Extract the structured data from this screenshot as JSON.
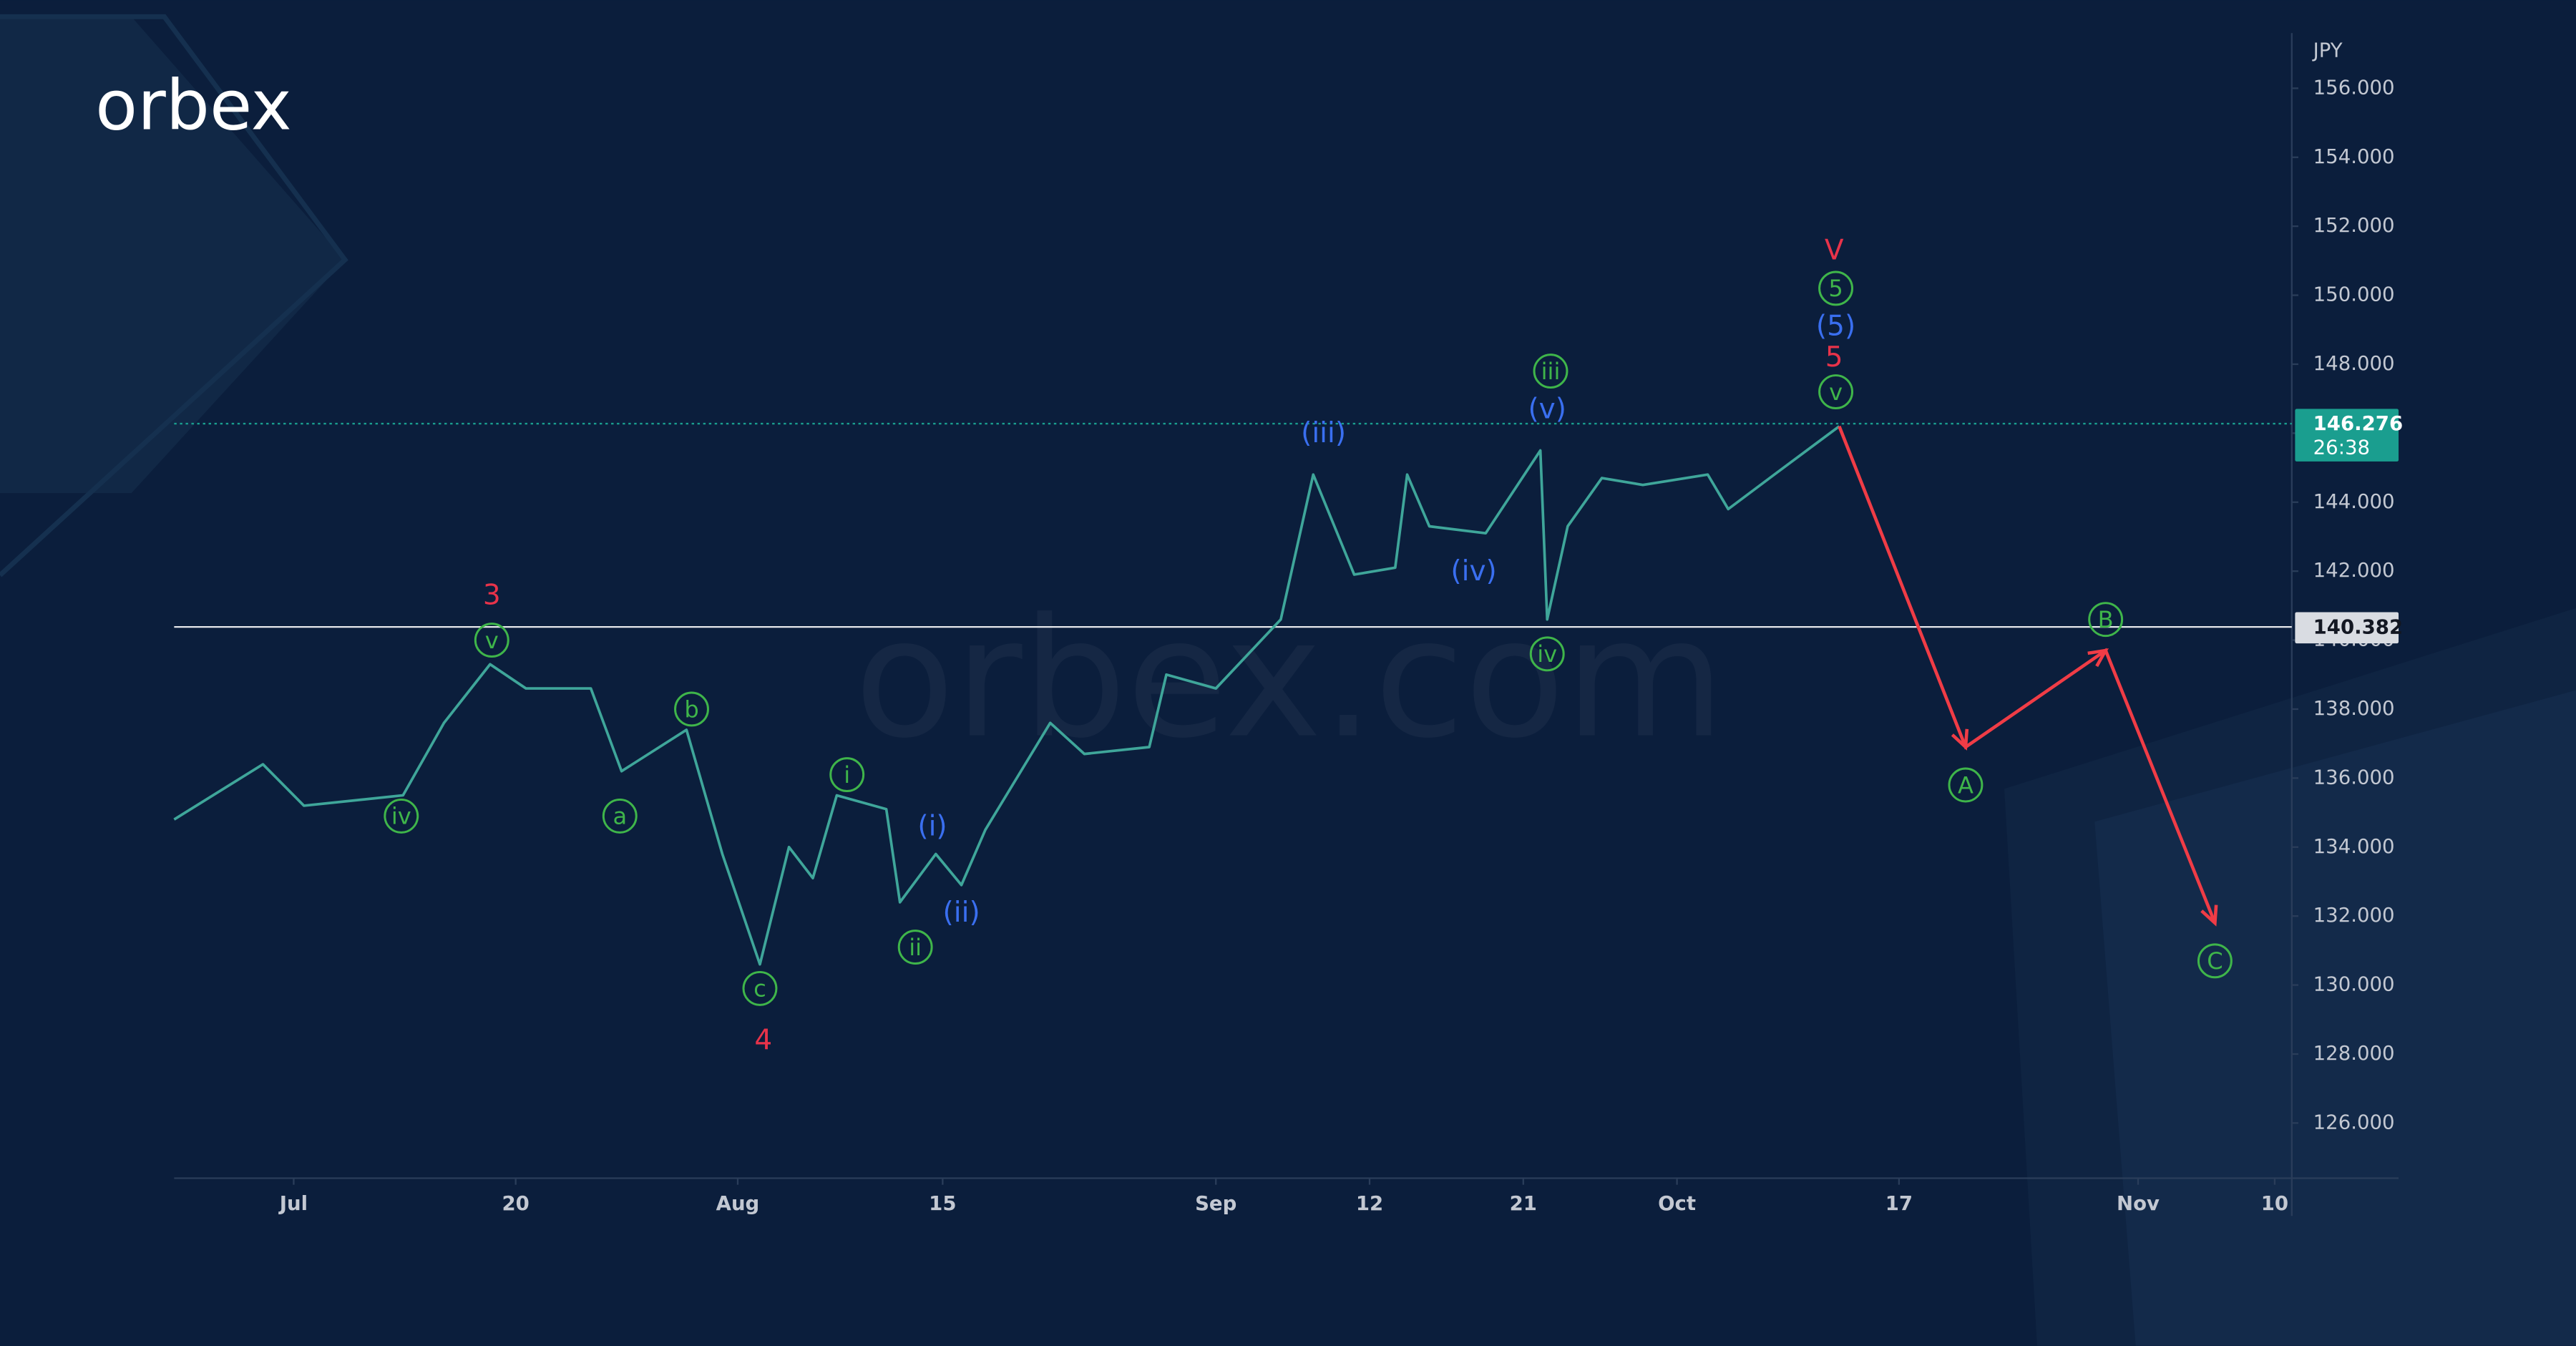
{
  "chart_data": {
    "type": "line",
    "brand": "orbex",
    "watermark": "orbex.com",
    "y_unit": "JPY",
    "color": "#3fa69a",
    "x": [
      0,
      5.2,
      7.6,
      13.4,
      15.8,
      18.5,
      20.6,
      24.4,
      26.2,
      30,
      32.1,
      34.3,
      36,
      37.4,
      38.8,
      41.7,
      42.5,
      44.6,
      46.1,
      47.5,
      51.3,
      53.3,
      57.1,
      58.1,
      61,
      64.8,
      66.7,
      69.1,
      71.5,
      72.2,
      73.5,
      76.8,
      80,
      80.4,
      81.6,
      83.6,
      86,
      89.8,
      91,
      93.7,
      97.5
    ],
    "values": [
      134.8,
      136.4,
      135.2,
      135.5,
      137.6,
      139.3,
      138.6,
      138.6,
      136.2,
      137.4,
      133.8,
      130.6,
      134,
      133.1,
      135.5,
      135.1,
      132.4,
      133.8,
      132.9,
      134.5,
      137.6,
      136.7,
      136.9,
      139,
      138.6,
      140.6,
      144.8,
      141.9,
      142.1,
      144.8,
      143.3,
      143.1,
      145.5,
      140.6,
      143.3,
      144.7,
      144.5,
      144.8,
      143.8,
      144.8,
      146.2
    ],
    "xlim": [
      0,
      124
    ],
    "xticks": [
      {
        "value": 7,
        "label": "Jul"
      },
      20,
      {
        "value": 33,
        "label": "Aug"
      },
      {
        "value": 45,
        "label": "15"
      },
      {
        "value": 61,
        "label": "Sep"
      },
      {
        "value": 70,
        "label": "12"
      },
      {
        "value": 79,
        "label": "21"
      },
      {
        "value": 88,
        "label": "Oct"
      },
      {
        "value": 101,
        "label": "17"
      },
      {
        "value": 115,
        "label": "Nov"
      },
      {
        "value": 123,
        "label": "10"
      }
    ],
    "ylim": [
      124.4,
      157.6
    ],
    "yticks": [
      {
        "value": 126,
        "label": "126.000"
      },
      {
        "value": 128,
        "label": "128.000"
      },
      {
        "value": 130,
        "label": "130.000"
      },
      {
        "value": 132,
        "label": "132.000"
      },
      {
        "value": 134,
        "label": "134.000"
      },
      {
        "value": 136,
        "label": "136.000"
      },
      {
        "value": 138,
        "label": "138.000"
      },
      {
        "value": 140,
        "label": "140.000"
      },
      {
        "value": 142,
        "label": "142.000"
      },
      {
        "value": 144,
        "label": "144.000"
      },
      {
        "value": 146,
        "label": "146.000"
      },
      {
        "value": 148,
        "label": "148.000"
      },
      {
        "value": 150,
        "label": "150.000"
      },
      {
        "value": 152,
        "label": "152.000"
      },
      {
        "value": 154,
        "label": "154.000"
      },
      {
        "value": 156,
        "label": "156.000"
      }
    ],
    "levels": [
      {
        "value": 140.382,
        "label": "140.382",
        "color": "#d9dce2",
        "style": "solid"
      },
      {
        "value": 146.276,
        "label": "146.276",
        "sublabel": "26:38",
        "color": "#1a9e8f",
        "style": "dotted"
      }
    ],
    "projection": {
      "color": "#f03c46",
      "x": [
        97.5,
        104.9,
        113.1,
        119.5
      ],
      "y": [
        146.2,
        136.9,
        139.7,
        131.8
      ]
    },
    "waves": [
      {
        "text": "3",
        "x": 18.6,
        "y": 141.3,
        "color": "#e8334a",
        "circled": false
      },
      {
        "text": "v",
        "x": 18.6,
        "y": 140.0,
        "color": "#3fb54a",
        "circled": true
      },
      {
        "text": "iv",
        "x": 13.3,
        "y": 134.9,
        "color": "#3fb54a",
        "circled": true
      },
      {
        "text": "a",
        "x": 26.1,
        "y": 134.9,
        "color": "#3fb54a",
        "circled": true
      },
      {
        "text": "b",
        "x": 30.3,
        "y": 138.0,
        "color": "#3fb54a",
        "circled": true
      },
      {
        "text": "c",
        "x": 34.3,
        "y": 129.9,
        "color": "#3fb54a",
        "circled": true
      },
      {
        "text": "4",
        "x": 34.5,
        "y": 128.4,
        "color": "#e8334a",
        "circled": false
      },
      {
        "text": "i",
        "x": 39.4,
        "y": 136.1,
        "color": "#3fb54a",
        "circled": true
      },
      {
        "text": "ii",
        "x": 43.4,
        "y": 131.1,
        "color": "#3fb54a",
        "circled": true
      },
      {
        "text": "(i)",
        "x": 44.4,
        "y": 134.6,
        "color": "#3a6ff0",
        "circled": false
      },
      {
        "text": "(ii)",
        "x": 46.1,
        "y": 132.1,
        "color": "#3a6ff0",
        "circled": false
      },
      {
        "text": "(iii)",
        "x": 67.3,
        "y": 146.0,
        "color": "#3a6ff0",
        "circled": false
      },
      {
        "text": "(iv)",
        "x": 76.1,
        "y": 142.0,
        "color": "#3a6ff0",
        "circled": false
      },
      {
        "text": "(v)",
        "x": 80.4,
        "y": 146.7,
        "color": "#3a6ff0",
        "circled": false
      },
      {
        "text": "iii",
        "x": 80.6,
        "y": 147.8,
        "color": "#3fb54a",
        "circled": true
      },
      {
        "text": "iv",
        "x": 80.4,
        "y": 139.6,
        "color": "#3fb54a",
        "circled": true
      },
      {
        "text": "V",
        "x": 97.2,
        "y": 151.3,
        "color": "#e8334a",
        "circled": false
      },
      {
        "text": "5",
        "x": 97.3,
        "y": 150.2,
        "color": "#3fb54a",
        "circled": true
      },
      {
        "text": "(5)",
        "x": 97.3,
        "y": 149.1,
        "color": "#3a6ff0",
        "circled": false
      },
      {
        "text": "5",
        "x": 97.2,
        "y": 148.2,
        "color": "#e8334a",
        "circled": false
      },
      {
        "text": "v",
        "x": 97.3,
        "y": 147.2,
        "color": "#3fb54a",
        "circled": true
      },
      {
        "text": "A",
        "x": 104.9,
        "y": 135.8,
        "color": "#3fb54a",
        "circled": true
      },
      {
        "text": "B",
        "x": 113.1,
        "y": 140.6,
        "color": "#3fb54a",
        "circled": true
      },
      {
        "text": "C",
        "x": 119.5,
        "y": 130.7,
        "color": "#3fb54a",
        "circled": true
      }
    ]
  }
}
